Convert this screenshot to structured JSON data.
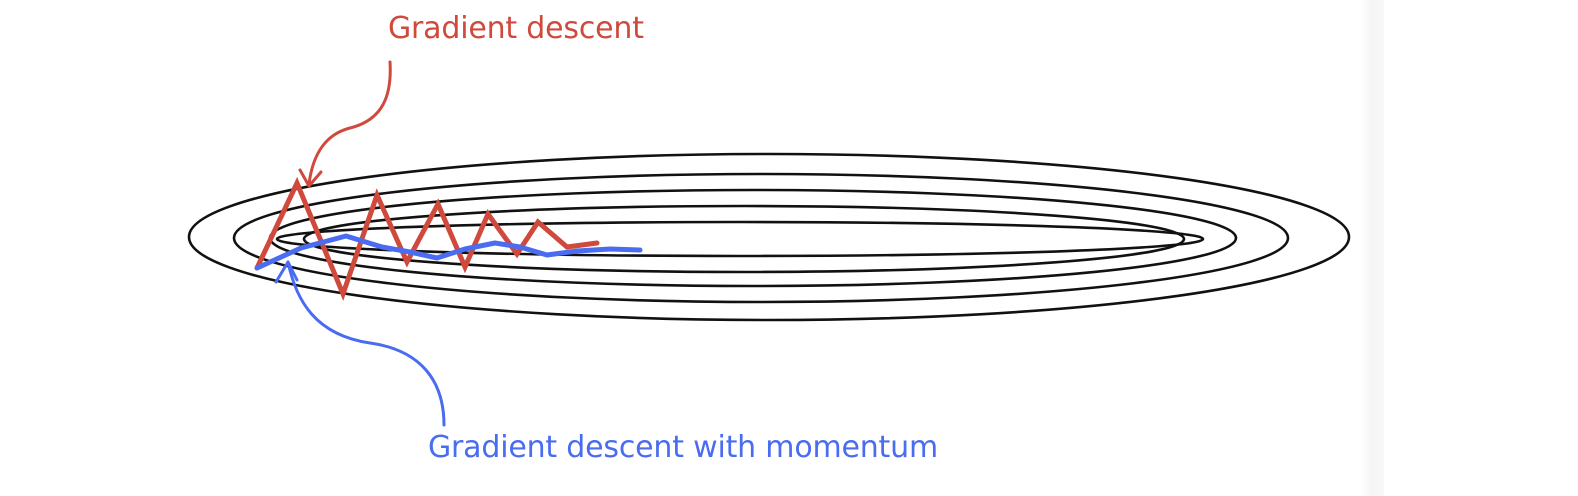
{
  "labels": {
    "gradient_descent": "Gradient descent",
    "gradient_descent_momentum": "Gradient descent with momentum"
  },
  "colors": {
    "gradient_descent": "#cf4a3c",
    "momentum": "#4a6cf0",
    "contours": "#111111"
  },
  "contours": {
    "count": 5
  },
  "paths": {
    "gradient_descent": "zigzag oscillating path",
    "momentum": "smooth damped path"
  }
}
